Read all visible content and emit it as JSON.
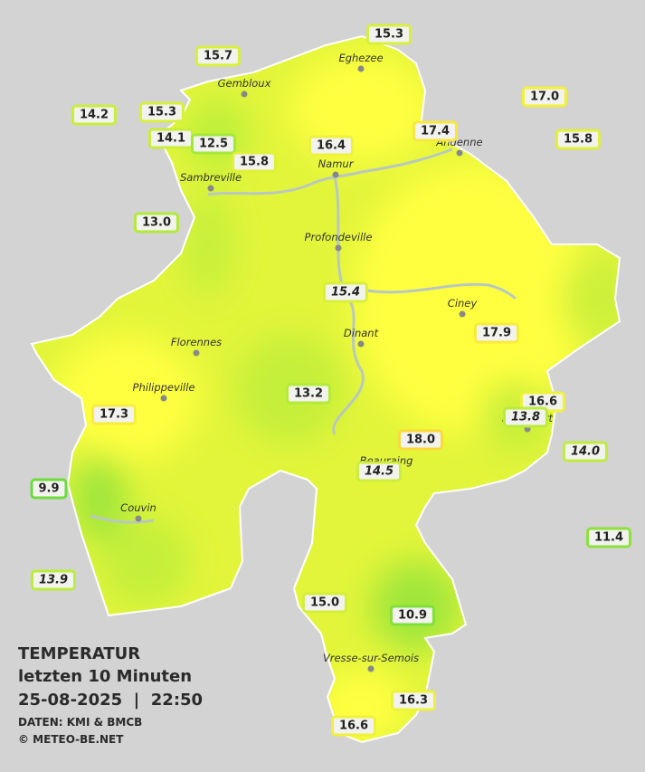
{
  "title": {
    "line1": "TEMPERATUR",
    "line2": "letzten 10 Minuten",
    "line3": "25-08-2025  |  22:50",
    "source": "DATEN: KMI & BMCB",
    "site": "© METEO-BE.NET"
  },
  "cities": [
    {
      "name": "Eghezee"
    },
    {
      "name": "Gembloux"
    },
    {
      "name": "Andenne"
    },
    {
      "name": "Namur"
    },
    {
      "name": "Sambreville"
    },
    {
      "name": "Profondeville"
    },
    {
      "name": "Ciney"
    },
    {
      "name": "Dinant"
    },
    {
      "name": "Florennes"
    },
    {
      "name": "Philippeville"
    },
    {
      "name": "Rochefort"
    },
    {
      "name": "Beauraing"
    },
    {
      "name": "Couvin"
    },
    {
      "name": "Vresse-sur-Semois"
    }
  ],
  "stations": [
    {
      "value": "15.3",
      "italic": false,
      "color": "#d8f03a"
    },
    {
      "value": "15.7",
      "italic": false,
      "color": "#d8f03a"
    },
    {
      "value": "14.2",
      "italic": false,
      "color": "#c8ee3a"
    },
    {
      "value": "15.3",
      "italic": false,
      "color": "#d8f03a"
    },
    {
      "value": "17.0",
      "italic": false,
      "color": "#f4f03a"
    },
    {
      "value": "14.1",
      "italic": false,
      "color": "#c8ee3a"
    },
    {
      "value": "12.5",
      "italic": false,
      "color": "#a4e83a"
    },
    {
      "value": "16.4",
      "italic": false,
      "color": "#eef23a"
    },
    {
      "value": "17.4",
      "italic": false,
      "color": "#f8e83a"
    },
    {
      "value": "15.8",
      "italic": false,
      "color": "#e0f03a"
    },
    {
      "value": "15.8",
      "italic": false,
      "color": "#e0f03a"
    },
    {
      "value": "13.0",
      "italic": false,
      "color": "#b0ea3a"
    },
    {
      "value": "15.4",
      "italic": true,
      "color": "#d8f03a"
    },
    {
      "value": "17.9",
      "italic": false,
      "color": "#faea3a"
    },
    {
      "value": "13.2",
      "italic": false,
      "color": "#b4ea3a"
    },
    {
      "value": "16.6",
      "italic": false,
      "color": "#f0f23a"
    },
    {
      "value": "13.8",
      "italic": true,
      "color": "#bcec3a"
    },
    {
      "value": "17.3",
      "italic": false,
      "color": "#f8ee3a"
    },
    {
      "value": "18.0",
      "italic": false,
      "color": "#fcd83a"
    },
    {
      "value": "14.0",
      "italic": true,
      "color": "#c0ec3a"
    },
    {
      "value": "14.5",
      "italic": true,
      "color": "#ccee3a"
    },
    {
      "value": "9.9",
      "italic": false,
      "color": "#6cdc3a"
    },
    {
      "value": "11.4",
      "italic": false,
      "color": "#8ae23a"
    },
    {
      "value": "13.9",
      "italic": true,
      "color": "#bcec3a"
    },
    {
      "value": "15.0",
      "italic": false,
      "color": "#d4ee3a"
    },
    {
      "value": "10.9",
      "italic": false,
      "color": "#80e03a"
    },
    {
      "value": "16.3",
      "italic": false,
      "color": "#ecf23a"
    },
    {
      "value": "16.6",
      "italic": false,
      "color": "#f0f23a"
    }
  ]
}
